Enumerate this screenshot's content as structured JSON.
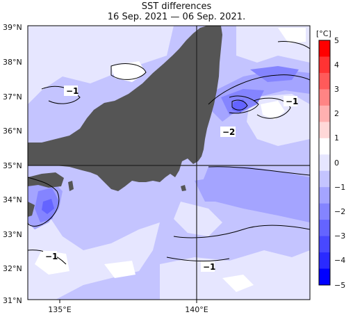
{
  "title": "SST differences",
  "subtitle": "16 Sep. 2021 — 06 Sep. 2021.",
  "y_ticks": [
    "39°N",
    "38°N",
    "37°N",
    "36°N",
    "35°N",
    "34°N",
    "33°N",
    "32°N",
    "31°N"
  ],
  "x_ticks": [
    "135°E",
    "140°E"
  ],
  "colorbar": {
    "unit": "[°C]",
    "labels": [
      "5",
      "4",
      "3",
      "2",
      "1",
      "0",
      "−1",
      "−2",
      "−3",
      "−4",
      "−5"
    ],
    "colors": [
      "#ff0000",
      "#ff3333",
      "#ff5a5a",
      "#ff8484",
      "#ffb0b0",
      "#ffd8d8",
      "#ffffff",
      "#e6e6ff",
      "#c4c4ff",
      "#a4a4ff",
      "#8484ff",
      "#6464ff",
      "#4848ff",
      "#2a2aff",
      "#0000ff"
    ]
  },
  "contour_labels": [
    "−1",
    "−1",
    "−2",
    "−1",
    "−1"
  ],
  "colors": {
    "land": "#555555",
    "ocean_pale": "#e6e6ff",
    "ocean_light": "#c4c4ff",
    "ocean_mid": "#a4a4ff",
    "ocean_deep": "#8484ff",
    "ocean_deeper": "#6464ff"
  }
}
